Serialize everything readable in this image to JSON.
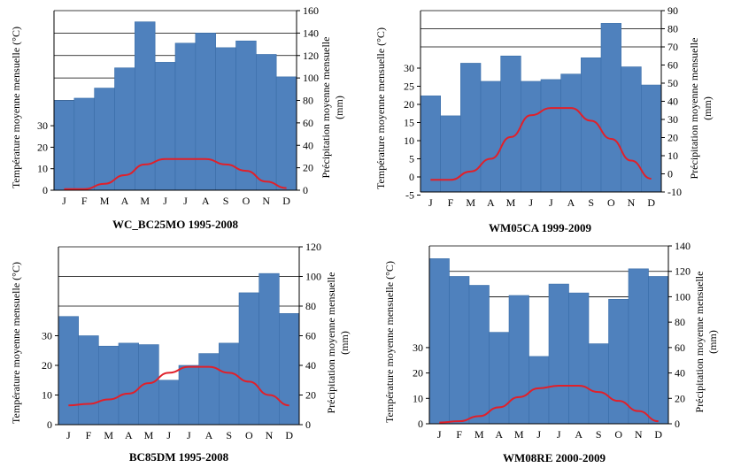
{
  "colors": {
    "bar": "#4f81bd",
    "bar_edge": "#3a6ea8",
    "line": "#e0202a",
    "grid": "#000000"
  },
  "chart_data": [
    {
      "type": "bar",
      "title": "WC_BC25MO 1995-2008",
      "categories": [
        "J",
        "F",
        "M",
        "A",
        "M",
        "J",
        "J",
        "A",
        "S",
        "O",
        "N",
        "D"
      ],
      "y_left_label": "Température moyenne mensuelle (°C)",
      "y_right_label_line1": "Précipitation moyenne mensuelle",
      "y_right_label_line2": "(mm)",
      "left_ticks": [
        "0",
        "10",
        "20",
        "30"
      ],
      "right_ticks": [
        "0",
        "20",
        "40",
        "60",
        "80",
        "100",
        "120",
        "140",
        "160"
      ],
      "right_ylim": [
        0,
        160
      ],
      "grid_right": [
        80,
        100,
        120,
        140,
        160
      ],
      "series": [
        {
          "name": "",
          "kind": "bar",
          "axis": "right",
          "values": [
            80,
            82,
            91,
            109,
            150,
            114,
            131,
            140,
            127,
            133,
            121,
            101
          ]
        },
        {
          "name": "",
          "kind": "line",
          "axis": "left",
          "values": [
            0.5,
            0.5,
            3,
            7,
            12,
            14.5,
            14.5,
            14.5,
            12,
            9,
            4,
            1
          ]
        }
      ]
    },
    {
      "type": "bar",
      "title": "WM05CA 1999-2009",
      "categories": [
        "J",
        "F",
        "M",
        "A",
        "M",
        "J",
        "J",
        "A",
        "S",
        "O",
        "N",
        "D"
      ],
      "y_left_label": "Température moyenne mensuelle (°C)",
      "y_right_label_line1": "Précipitation moyenne mensuelle",
      "y_right_label_line2": "(mm)",
      "left_ticks": [
        "-5",
        "0",
        "5",
        "10",
        "15",
        "20",
        "25",
        "30"
      ],
      "right_ticks": [
        "-10",
        "0",
        "10",
        "20",
        "30",
        "40",
        "50",
        "60",
        "70",
        "80",
        "90"
      ],
      "right_ylim": [
        -10,
        90
      ],
      "grid_right": [
        70,
        80,
        90
      ],
      "series": [
        {
          "name": "",
          "kind": "bar",
          "axis": "right",
          "values": [
            43,
            32,
            61,
            51,
            65,
            51,
            52,
            55,
            64,
            83,
            59,
            49
          ]
        },
        {
          "name": "",
          "kind": "line",
          "axis": "left",
          "values": [
            -0.8,
            -0.8,
            1.5,
            5,
            11,
            17,
            19,
            19,
            15.5,
            10.5,
            4.5,
            -0.5
          ]
        }
      ]
    },
    {
      "type": "bar",
      "title": "BC85DM 1995-2008",
      "categories": [
        "J",
        "F",
        "M",
        "A",
        "M",
        "J",
        "J",
        "A",
        "S",
        "O",
        "N",
        "D"
      ],
      "y_left_label": "Température moyenne mensuelle (°C)",
      "y_right_label_line1": "Précipitation moyenne mensuelle",
      "y_right_label_line2": "(mm)",
      "left_ticks": [
        "0",
        "10",
        "20",
        "30"
      ],
      "right_ticks": [
        "0",
        "20",
        "40",
        "60",
        "80",
        "100",
        "120"
      ],
      "right_ylim": [
        0,
        120
      ],
      "grid_right": [
        80,
        100,
        120
      ],
      "series": [
        {
          "name": "",
          "kind": "bar",
          "axis": "right",
          "values": [
            73,
            60,
            53,
            55,
            54,
            30,
            40,
            48,
            55,
            89,
            102,
            75
          ]
        },
        {
          "name": "",
          "kind": "line",
          "axis": "left",
          "values": [
            6.5,
            7,
            8.5,
            10.5,
            14,
            17.5,
            19.5,
            19.5,
            17.5,
            14.5,
            10,
            6.5
          ]
        }
      ]
    },
    {
      "type": "bar",
      "title": "WM08RE 2000-2009",
      "categories": [
        "J",
        "F",
        "M",
        "A",
        "M",
        "J",
        "J",
        "A",
        "S",
        "O",
        "N",
        "D"
      ],
      "y_left_label": "Température moyenne mensuelle (°C)",
      "y_right_label_line1": "Précipitation moyenne mensuelle",
      "y_right_label_line2": "(mm)",
      "left_ticks": [
        "0",
        "10",
        "20",
        "30"
      ],
      "right_ticks": [
        "0",
        "20",
        "40",
        "60",
        "80",
        "100",
        "120",
        "140"
      ],
      "right_ylim": [
        0,
        140
      ],
      "grid_right": [
        100,
        120,
        140
      ],
      "series": [
        {
          "name": "",
          "kind": "bar",
          "axis": "right",
          "values": [
            130,
            116,
            109,
            72,
            101,
            53,
            110,
            103,
            63,
            98,
            122,
            116
          ]
        },
        {
          "name": "",
          "kind": "line",
          "axis": "left",
          "values": [
            0.5,
            1,
            3,
            6.5,
            10.5,
            14,
            15,
            15,
            12.5,
            9,
            5,
            1
          ]
        }
      ]
    }
  ]
}
